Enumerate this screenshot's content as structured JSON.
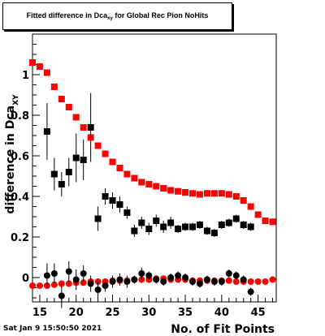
{
  "window": {
    "title_main": "Fitted difference in Dca",
    "title_sub": "xy",
    "title_rest": " for Global Rec Pion NoHits",
    "footer_date": "Sat Jan  9 15:50:50 2021"
  },
  "chart_data": {
    "type": "scatter",
    "title": "Fitted difference in Dca_xy for Global Rec Pion NoHits",
    "xlabel": "No. of Fit Points",
    "ylabel_main": "difference in Dca",
    "ylabel_sub": "XY",
    "xlim": [
      14,
      47.5
    ],
    "ylim": [
      -0.12,
      1.2
    ],
    "x_ticks": [
      15,
      20,
      25,
      30,
      35,
      40,
      45
    ],
    "y_ticks": [
      0,
      0.2,
      0.4,
      0.6,
      0.8,
      1
    ],
    "x_tick_labels": [
      "15",
      "20",
      "25",
      "30",
      "35",
      "40",
      "45"
    ],
    "y_tick_labels": [
      "0",
      "0.2",
      "0.4",
      "0.6",
      "0.8",
      "1"
    ],
    "colors": {
      "red": "#ff0000",
      "black": "#000000"
    },
    "series": [
      {
        "marker": "square",
        "color": "#ff0000",
        "points": [
          [
            14,
            1.06
          ],
          [
            15,
            1.04
          ],
          [
            16,
            1.01
          ],
          [
            17,
            0.94
          ],
          [
            18,
            0.88
          ],
          [
            19,
            0.84
          ],
          [
            20,
            0.79
          ],
          [
            21,
            0.74
          ],
          [
            22,
            0.69
          ],
          [
            23,
            0.65
          ],
          [
            24,
            0.61
          ],
          [
            25,
            0.57
          ],
          [
            26,
            0.54
          ],
          [
            27,
            0.51
          ],
          [
            28,
            0.49
          ],
          [
            29,
            0.47
          ],
          [
            30,
            0.46
          ],
          [
            31,
            0.45
          ],
          [
            32,
            0.44
          ],
          [
            33,
            0.43
          ],
          [
            34,
            0.425
          ],
          [
            35,
            0.42
          ],
          [
            36,
            0.415
          ],
          [
            37,
            0.41
          ],
          [
            38,
            0.415
          ],
          [
            39,
            0.415
          ],
          [
            40,
            0.415
          ],
          [
            41,
            0.41
          ],
          [
            42,
            0.4
          ],
          [
            43,
            0.38
          ],
          [
            44,
            0.35
          ],
          [
            45,
            0.31
          ],
          [
            46,
            0.28
          ],
          [
            47,
            0.275
          ]
        ]
      },
      {
        "marker": "square",
        "color": "#000000",
        "points": [
          [
            16,
            0.72,
            0.14
          ],
          [
            17,
            0.51,
            0.08
          ],
          [
            18,
            0.46,
            0.06
          ],
          [
            19,
            0.52,
            0.07
          ],
          [
            20,
            0.59,
            0.12
          ],
          [
            21,
            0.58,
            0.1
          ],
          [
            22,
            0.74,
            0.17
          ],
          [
            23,
            0.29,
            0.06
          ],
          [
            24,
            0.4,
            0.04
          ],
          [
            25,
            0.38,
            0.04
          ],
          [
            26,
            0.36,
            0.04
          ],
          [
            27,
            0.32,
            0.03
          ],
          [
            28,
            0.23,
            0.03
          ],
          [
            29,
            0.27,
            0.03
          ],
          [
            30,
            0.24,
            0.03
          ],
          [
            31,
            0.28,
            0.03
          ],
          [
            32,
            0.25,
            0.03
          ],
          [
            33,
            0.27,
            0.03
          ],
          [
            34,
            0.24,
            0.02
          ],
          [
            35,
            0.25,
            0.02
          ],
          [
            36,
            0.25,
            0.02
          ],
          [
            37,
            0.26,
            0.02
          ],
          [
            38,
            0.23,
            0.02
          ],
          [
            39,
            0.22,
            0.02
          ],
          [
            40,
            0.26,
            0.02
          ],
          [
            41,
            0.27,
            0.02
          ],
          [
            42,
            0.29,
            0.02
          ],
          [
            43,
            0.26,
            0.02
          ],
          [
            44,
            0.25,
            0.02
          ]
        ]
      },
      {
        "marker": "circle",
        "color": "#ff0000",
        "points": [
          [
            14,
            -0.04
          ],
          [
            15,
            -0.04
          ],
          [
            16,
            -0.04
          ],
          [
            17,
            -0.035
          ],
          [
            18,
            -0.03
          ],
          [
            19,
            -0.03
          ],
          [
            20,
            -0.025
          ],
          [
            21,
            -0.025
          ],
          [
            22,
            -0.02
          ],
          [
            23,
            -0.02
          ],
          [
            24,
            -0.02
          ],
          [
            25,
            -0.015
          ],
          [
            26,
            -0.015
          ],
          [
            27,
            -0.015
          ],
          [
            28,
            -0.01
          ],
          [
            29,
            -0.01
          ],
          [
            30,
            -0.01
          ],
          [
            31,
            -0.005
          ],
          [
            32,
            -0.005
          ],
          [
            33,
            -0.01
          ],
          [
            34,
            -0.01
          ],
          [
            35,
            -0.01
          ],
          [
            36,
            -0.015
          ],
          [
            37,
            -0.015
          ],
          [
            38,
            -0.015
          ],
          [
            39,
            -0.015
          ],
          [
            40,
            -0.015
          ],
          [
            41,
            -0.015
          ],
          [
            42,
            -0.02
          ],
          [
            43,
            -0.02
          ],
          [
            44,
            -0.02
          ],
          [
            45,
            -0.02
          ],
          [
            46,
            -0.02
          ],
          [
            47,
            -0.01
          ]
        ]
      },
      {
        "marker": "circle",
        "color": "#000000",
        "points": [
          [
            16,
            0.01,
            0.06
          ],
          [
            17,
            0.02,
            0.05
          ],
          [
            18,
            -0.09,
            0.06
          ],
          [
            19,
            0.03,
            0.05
          ],
          [
            20,
            -0.01,
            0.05
          ],
          [
            21,
            0.02,
            0.04
          ],
          [
            22,
            -0.03,
            0.04
          ],
          [
            23,
            -0.06,
            0.04
          ],
          [
            24,
            -0.04,
            0.03
          ],
          [
            25,
            -0.02,
            0.03
          ],
          [
            26,
            -0.01,
            0.03
          ],
          [
            27,
            -0.02,
            0.03
          ],
          [
            28,
            -0.01,
            0.02
          ],
          [
            29,
            0.02,
            0.03
          ],
          [
            30,
            0.01,
            0.02
          ],
          [
            31,
            -0.01,
            0.02
          ],
          [
            32,
            -0.02,
            0.02
          ],
          [
            33,
            0.0,
            0.02
          ],
          [
            34,
            0.01,
            0.02
          ],
          [
            35,
            0.0,
            0.02
          ],
          [
            36,
            -0.02,
            0.02
          ],
          [
            37,
            -0.03,
            0.02
          ],
          [
            38,
            -0.01,
            0.02
          ],
          [
            39,
            -0.02,
            0.02
          ],
          [
            40,
            -0.02,
            0.02
          ],
          [
            41,
            0.02,
            0.02
          ],
          [
            42,
            0.01,
            0.02
          ],
          [
            43,
            -0.01,
            0.02
          ],
          [
            44,
            -0.07,
            0.02
          ]
        ]
      }
    ]
  }
}
